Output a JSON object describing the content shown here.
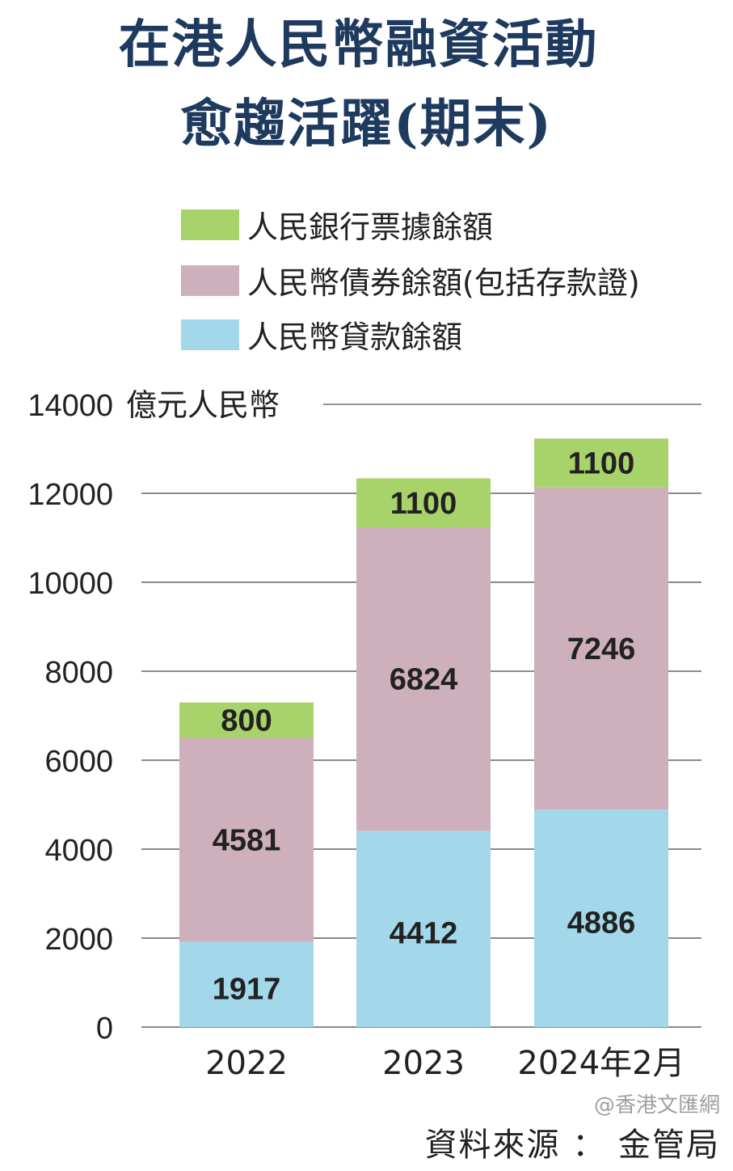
{
  "title_lines": [
    "在港人民幣融資活動",
    "愈趨活躍(期末)"
  ],
  "source": "資料來源 ： 金管局",
  "watermark": "@香港文匯網",
  "chart_data": {
    "type": "bar",
    "stacked": true,
    "title": "在港人民幣融資活動愈趨活躍(期末)",
    "ylabel": "億元人民幣",
    "ylim": [
      0,
      14000
    ],
    "yticks": [
      0,
      2000,
      4000,
      6000,
      8000,
      10000,
      12000,
      14000
    ],
    "grid": true,
    "legend_position": "top-left",
    "categories": [
      "2022",
      "2023",
      "2024年2月"
    ],
    "series": [
      {
        "name": "人民幣貸款餘額",
        "color": "#a3d8ea",
        "values": [
          1917,
          4412,
          4886
        ]
      },
      {
        "name": "人民幣債券餘額(包括存款證)",
        "color": "#cdb0bb",
        "values": [
          4581,
          6824,
          7246
        ]
      },
      {
        "name": "人民銀行票據餘額",
        "color": "#a8d26a",
        "values": [
          800,
          1100,
          1100
        ]
      }
    ]
  }
}
